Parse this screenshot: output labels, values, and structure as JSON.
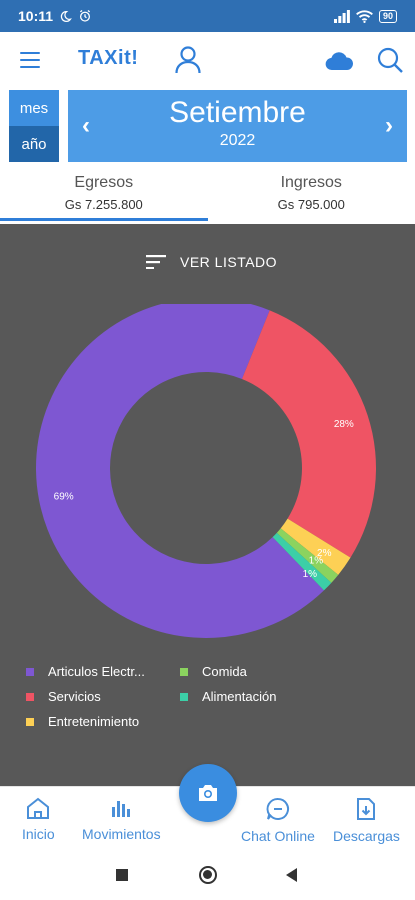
{
  "status_bar": {
    "time": "10:11",
    "battery": "90"
  },
  "app": {
    "title": "TAXit!"
  },
  "period": {
    "mode_month": "mes",
    "mode_year": "año",
    "month": "Setiembre",
    "year": "2022",
    "prev": "‹",
    "next": "›"
  },
  "tabs": [
    {
      "label": "Egresos",
      "amount": "Gs 7.255.800",
      "active": true
    },
    {
      "label": "Ingresos",
      "amount": "Gs 795.000",
      "active": false
    }
  ],
  "list_button": "VER LISTADO",
  "chart_data": {
    "type": "pie",
    "donut": true,
    "categories": [
      "Articulos Electr...",
      "Servicios",
      "Entretenimiento",
      "Comida",
      "Alimentación"
    ],
    "values": [
      69,
      28,
      2,
      1,
      1
    ],
    "labels": [
      "69%",
      "28%",
      "2%",
      "1%",
      "1%"
    ],
    "colors": [
      "#7e57d2",
      "#ef5464",
      "#fdd055",
      "#8bd35f",
      "#3ccfa7"
    ],
    "legend_position": "bottom"
  },
  "legend": {
    "items": [
      {
        "label": "Articulos Electr...",
        "color": "#7e57d2"
      },
      {
        "label": "Comida",
        "color": "#8bd35f"
      },
      {
        "label": "Servicios",
        "color": "#ef5464"
      },
      {
        "label": "Alimentación",
        "color": "#3ccfa7"
      },
      {
        "label": "Entretenimiento",
        "color": "#fdd055"
      }
    ]
  },
  "bottom_nav": [
    {
      "label": "Inicio",
      "icon": "home-icon"
    },
    {
      "label": "Movimientos",
      "icon": "bar-chart-icon"
    },
    {
      "label": "Chat Online",
      "icon": "chat-icon"
    },
    {
      "label": "Descargas",
      "icon": "download-file-icon"
    }
  ],
  "fab_icon": "camera-icon"
}
